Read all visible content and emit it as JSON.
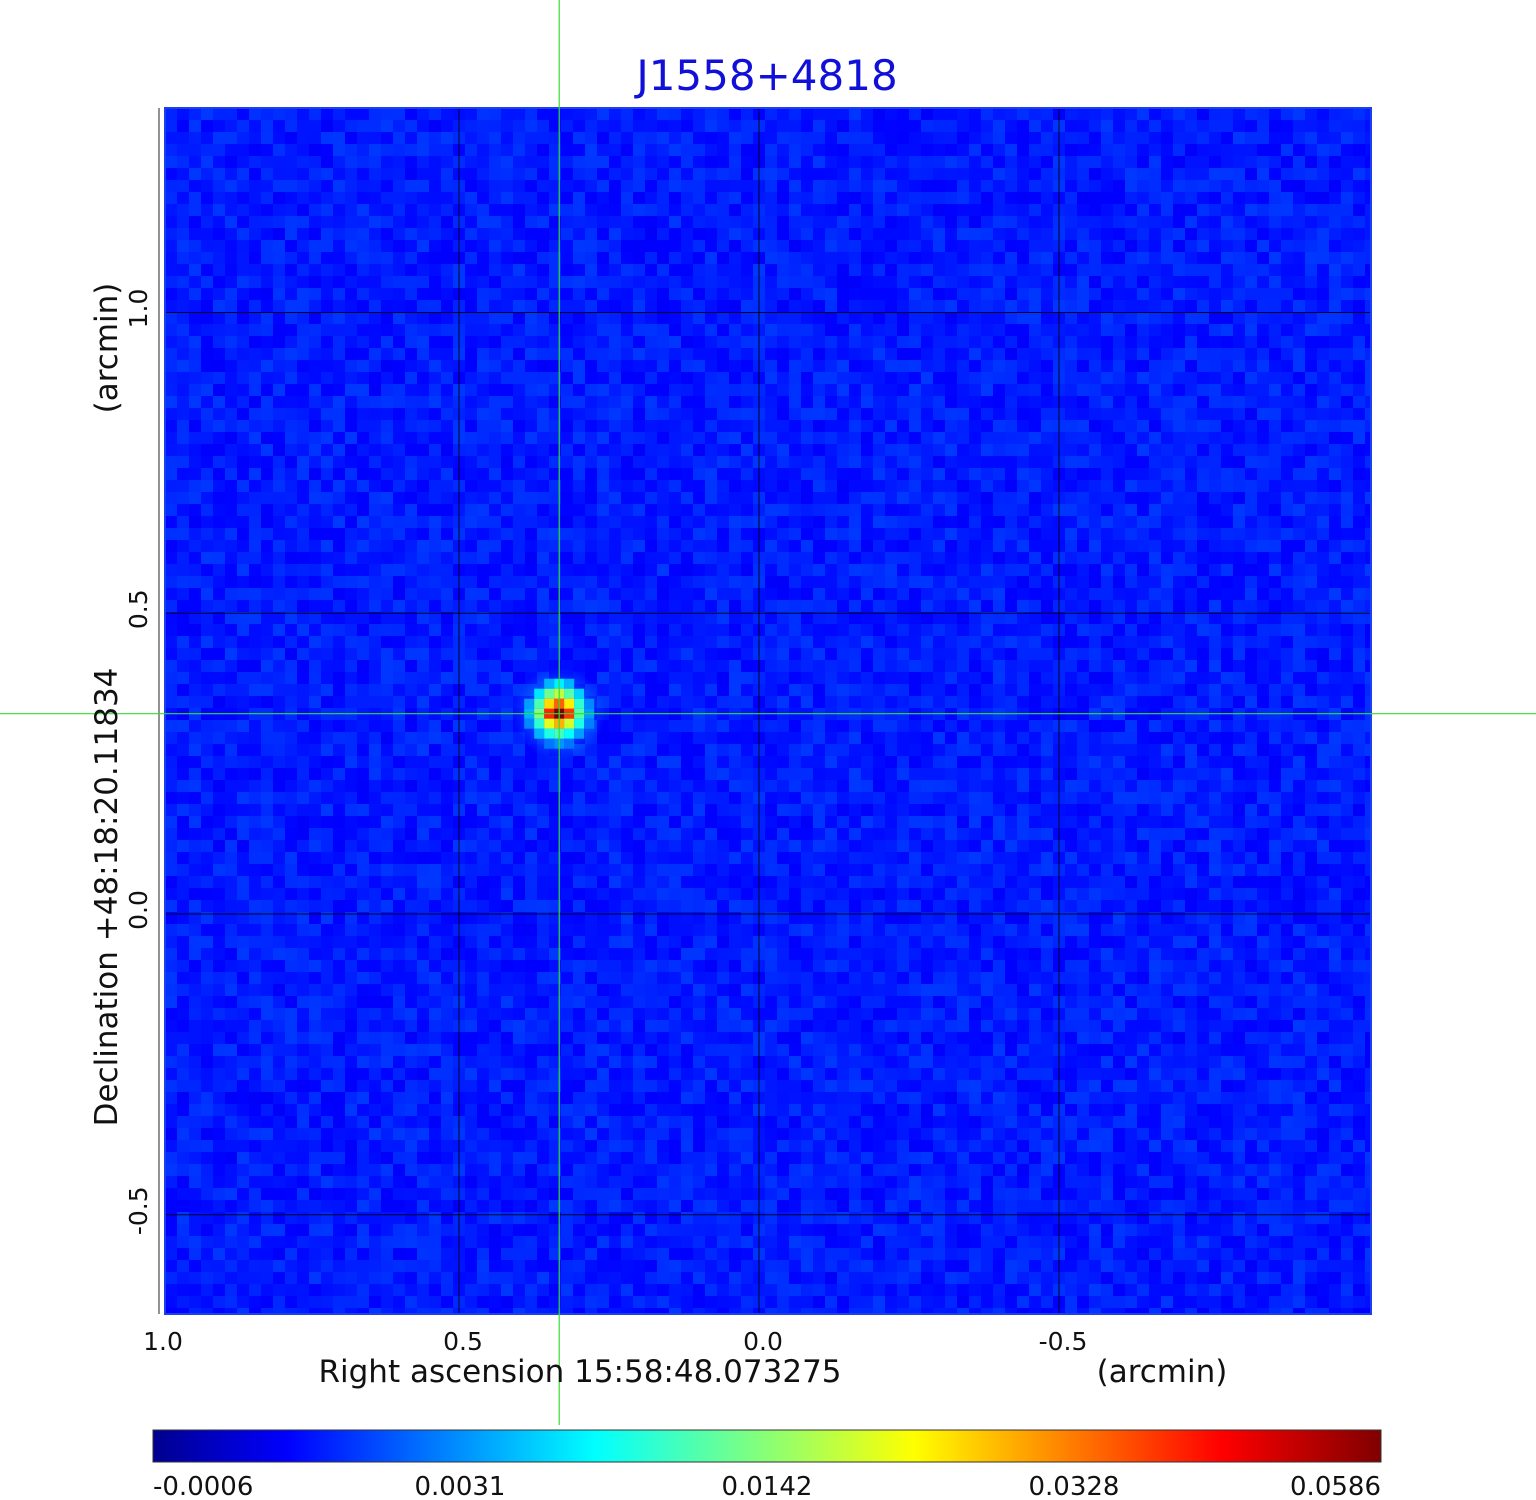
{
  "chart_data": {
    "type": "heatmap",
    "title": "J1558+4818",
    "xlabel": "Right ascension  15:58:48.073275",
    "xlabel_unit": "(arcmin)",
    "ylabel": "Declination  +48:18:20.11834",
    "ylabel_unit": "(arcmin)",
    "xlim": [
      0.99,
      -1.02
    ],
    "ylim": [
      -0.665,
      1.34
    ],
    "x_ticks": [
      {
        "value": 1.0,
        "label": "1.0"
      },
      {
        "value": 0.5,
        "label": "0.5"
      },
      {
        "value": 0.0,
        "label": "0.0"
      },
      {
        "value": -0.5,
        "label": "-0.5"
      }
    ],
    "y_ticks": [
      {
        "value": 1.0,
        "label": "1.0"
      },
      {
        "value": 0.5,
        "label": "0.5"
      },
      {
        "value": 0.0,
        "label": "0.0"
      },
      {
        "value": -0.5,
        "label": "-0.5"
      }
    ],
    "grid": true,
    "crosshair": {
      "x": 0.333,
      "y": 0.333
    },
    "source_peak": {
      "x": 0.333,
      "y": 0.333,
      "value": 0.0586
    },
    "background_level": 0.0005,
    "colormap": "jet",
    "colorbar": {
      "orientation": "horizontal",
      "position": "bottom",
      "ticks": [
        {
          "fraction": 0.0,
          "label": "-0.0006"
        },
        {
          "fraction": 0.25,
          "label": "0.0031"
        },
        {
          "fraction": 0.5,
          "label": "0.0142"
        },
        {
          "fraction": 0.75,
          "label": "0.0328"
        },
        {
          "fraction": 1.0,
          "label": "0.0586"
        }
      ]
    }
  },
  "colors": {
    "title": "#1010d8",
    "crosshair": "#33dd33",
    "grid": "#000000",
    "frame": "#1d3ff0"
  }
}
